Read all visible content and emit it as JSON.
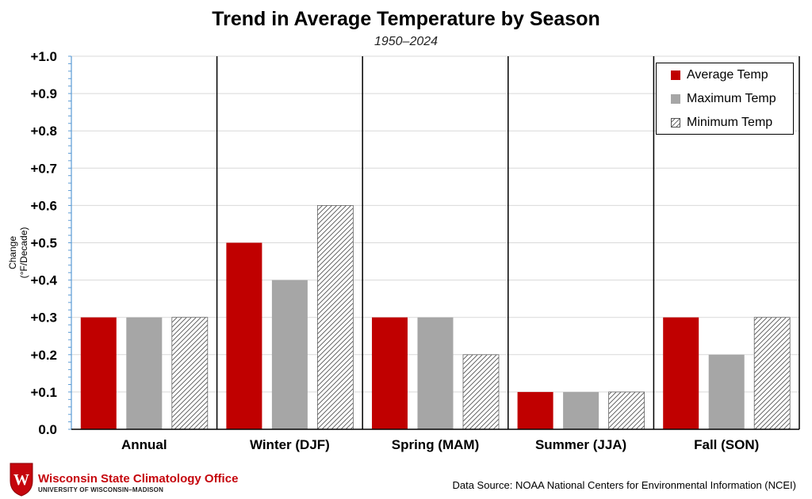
{
  "chart_data": {
    "type": "bar",
    "title": "Trend in Average Temperature by Season",
    "subtitle": "1950–2024",
    "xlabel": "",
    "ylabel": "Change (°F/Decade)",
    "ylim": [
      0,
      1.0
    ],
    "yticks": [
      "0.0",
      "+0.1",
      "+0.2",
      "+0.3",
      "+0.4",
      "+0.5",
      "+0.6",
      "+0.7",
      "+0.8",
      "+0.9",
      "+1.0"
    ],
    "categories": [
      "Annual",
      "Winter (DJF)",
      "Spring (MAM)",
      "Summer (JJA)",
      "Fall (SON)"
    ],
    "series": [
      {
        "name": "Average Temp",
        "values": [
          0.3,
          0.5,
          0.3,
          0.1,
          0.3
        ],
        "color": "#c00000"
      },
      {
        "name": "Maximum Temp",
        "values": [
          0.3,
          0.4,
          0.3,
          0.1,
          0.2
        ],
        "color": "#a6a6a6"
      },
      {
        "name": "Minimum Temp",
        "values": [
          0.3,
          0.6,
          0.2,
          0.1,
          0.3
        ],
        "color": "hatched"
      }
    ],
    "legend": "top-right",
    "grid": true
  },
  "footer": {
    "org_name": "Wisconsin State Climatology Office",
    "org_sub": "UNIVERSITY OF WISCONSIN–MADISON",
    "logo_letter": "W",
    "source": "Data Source: NOAA National Centers for Environmental Information (NCEI)"
  }
}
